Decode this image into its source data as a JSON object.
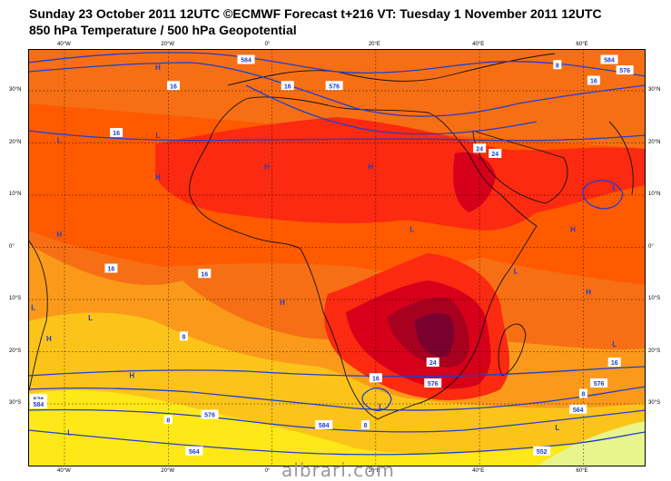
{
  "title_line1": "Sunday 23 October 2011 12UTC ©ECMWF Forecast t+216 VT: Tuesday 1 November 2011 12UTC",
  "title_line2": "850 hPa Temperature / 500 hPa Geopotential",
  "watermark": "albrari.com",
  "lon_labels": [
    "40°W",
    "20°W",
    "0°",
    "20°E",
    "40°E",
    "60°E"
  ],
  "lat_labels": [
    "30°N",
    "20°N",
    "10°N",
    "0°",
    "10°S",
    "20°S",
    "30°S"
  ],
  "pressure_centers": [
    {
      "t": "H",
      "lon": -22,
      "lat": 34
    },
    {
      "t": "L",
      "lon": -41,
      "lat": 20
    },
    {
      "t": "L",
      "lon": -22,
      "lat": 21
    },
    {
      "t": "H",
      "lon": -22,
      "lat": 13
    },
    {
      "t": "H",
      "lon": -1,
      "lat": 15
    },
    {
      "t": "H",
      "lon": 19,
      "lat": 15
    },
    {
      "t": "H",
      "lon": -41,
      "lat": 2
    },
    {
      "t": "L",
      "lon": 27,
      "lat": 3
    },
    {
      "t": "H",
      "lon": 58,
      "lat": 3
    },
    {
      "t": "L",
      "lon": 66,
      "lat": 11
    },
    {
      "t": "L",
      "lon": 47,
      "lat": -5
    },
    {
      "t": "H",
      "lon": 61,
      "lat": -9
    },
    {
      "t": "L",
      "lon": -46,
      "lat": -12
    },
    {
      "t": "L",
      "lon": -35,
      "lat": -14
    },
    {
      "t": "H",
      "lon": 2,
      "lat": -11
    },
    {
      "t": "H",
      "lon": -43,
      "lat": -18
    },
    {
      "t": "L",
      "lon": 66,
      "lat": -19
    },
    {
      "t": "H",
      "lon": -27,
      "lat": -25
    },
    {
      "t": "L",
      "lon": 21,
      "lat": -31
    },
    {
      "t": "L",
      "lon": -39,
      "lat": -36
    },
    {
      "t": "L",
      "lon": 55,
      "lat": -35
    }
  ],
  "contour_labels": [
    {
      "t": "584",
      "lon": -5,
      "lat": 36
    },
    {
      "t": "576",
      "lon": 12,
      "lat": 31
    },
    {
      "t": "16",
      "lon": -19,
      "lat": 31
    },
    {
      "t": "16",
      "lon": 3,
      "lat": 31
    },
    {
      "t": "8",
      "lon": 55,
      "lat": 35
    },
    {
      "t": "16",
      "lon": 62,
      "lat": 32
    },
    {
      "t": "584",
      "lon": 65,
      "lat": 36
    },
    {
      "t": "576",
      "lon": 68,
      "lat": 34
    },
    {
      "t": "16",
      "lon": -30,
      "lat": 22
    },
    {
      "t": "24",
      "lon": 40,
      "lat": 19
    },
    {
      "t": "24",
      "lon": 43,
      "lat": 18
    },
    {
      "t": "16",
      "lon": -31,
      "lat": -4
    },
    {
      "t": "16",
      "lon": -13,
      "lat": -5
    },
    {
      "t": "8",
      "lon": -17,
      "lat": -17
    },
    {
      "t": "24",
      "lon": 31,
      "lat": -22
    },
    {
      "t": "16",
      "lon": 20,
      "lat": -25
    },
    {
      "t": "16",
      "lon": 66,
      "lat": -22
    },
    {
      "t": "576",
      "lon": -45,
      "lat": -29
    },
    {
      "t": "584",
      "lon": -45,
      "lat": -30
    },
    {
      "t": "576",
      "lon": -12,
      "lat": -32
    },
    {
      "t": "8",
      "lon": -20,
      "lat": -33
    },
    {
      "t": "584",
      "lon": 10,
      "lat": -34
    },
    {
      "t": "8",
      "lon": 18,
      "lat": -34
    },
    {
      "t": "576",
      "lon": 31,
      "lat": -26
    },
    {
      "t": "8",
      "lon": 60,
      "lat": -28
    },
    {
      "t": "564",
      "lon": 59,
      "lat": -31
    },
    {
      "t": "564",
      "lon": -15,
      "lat": -39
    },
    {
      "t": "576",
      "lon": 63,
      "lat": -26
    },
    {
      "t": "552",
      "lon": 52,
      "lat": -39
    }
  ],
  "colors": {
    "ocean": "#f76f14",
    "warm": "#ff5a00",
    "hot": "#fb2a10",
    "very_hot": "#d6001a",
    "extreme": "#a8001f",
    "peak": "#7a0030",
    "mild": "#fb9a1a",
    "cool": "#fcc41a",
    "cooler": "#ffe818",
    "cold": "#e8f58c",
    "contour": "#1f3fcf"
  }
}
